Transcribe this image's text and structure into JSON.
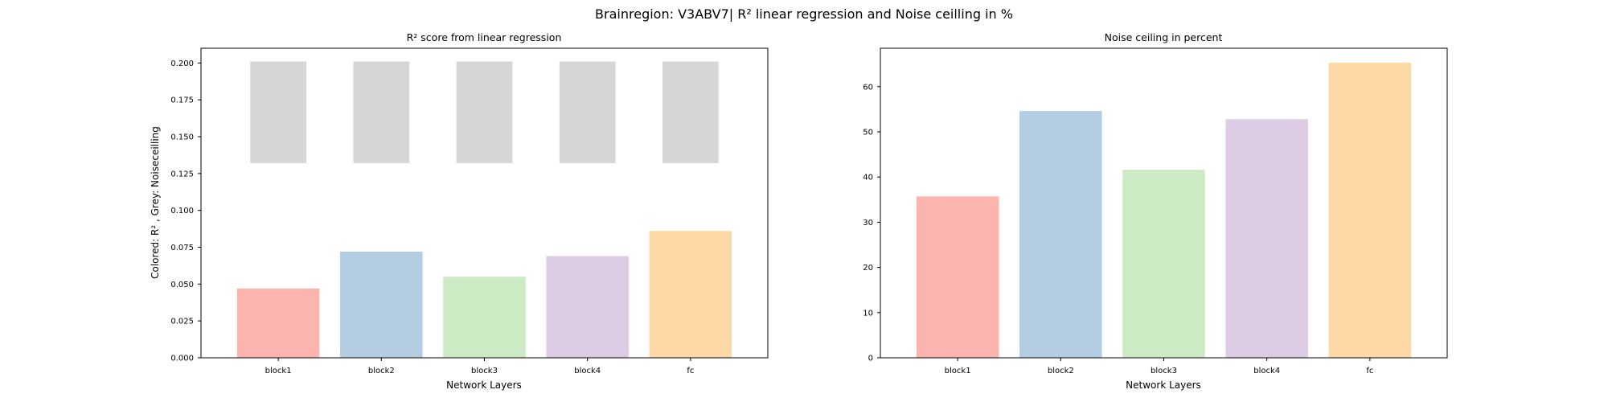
{
  "figure": {
    "title": "Brainregion: V3ABV7| R² linear regression and Noise ceilling in %"
  },
  "colors": {
    "bars": [
      "#fbb4ae",
      "#b3cde3",
      "#ccebc5",
      "#decbe4",
      "#fed9a6"
    ],
    "noise_ceiling": "#d6d6d6"
  },
  "chart_data": [
    {
      "type": "bar",
      "title": "R² score from linear regression",
      "xlabel": "Network Layers",
      "ylabel": "Colored: R² , Grey: Noiseceilling",
      "categories": [
        "block1",
        "block2",
        "block3",
        "block4",
        "fc"
      ],
      "series": [
        {
          "values": [
            0.047,
            0.072,
            0.055,
            0.069,
            0.086
          ]
        }
      ],
      "noise_ceiling_range": [
        0.132,
        0.201
      ],
      "ylim": [
        0,
        0.21
      ],
      "yticks": [
        0,
        0.025,
        0.05,
        0.075,
        0.1,
        0.125,
        0.15,
        0.175,
        0.2
      ],
      "ytick_labels": [
        "0.000",
        "0.025",
        "0.050",
        "0.075",
        "0.100",
        "0.125",
        "0.150",
        "0.175",
        "0.200"
      ],
      "grid": false
    },
    {
      "type": "bar",
      "title": "Noise ceiling in percent",
      "xlabel": "Network Layers",
      "ylabel": "",
      "categories": [
        "block1",
        "block2",
        "block3",
        "block4",
        "fc"
      ],
      "series": [
        {
          "values": [
            35.7,
            54.6,
            41.6,
            52.8,
            65.3
          ]
        }
      ],
      "ylim": [
        0,
        68.5
      ],
      "yticks": [
        0,
        10,
        20,
        30,
        40,
        50,
        60
      ],
      "ytick_labels": [
        "0",
        "10",
        "20",
        "30",
        "40",
        "50",
        "60"
      ],
      "grid": false
    }
  ]
}
